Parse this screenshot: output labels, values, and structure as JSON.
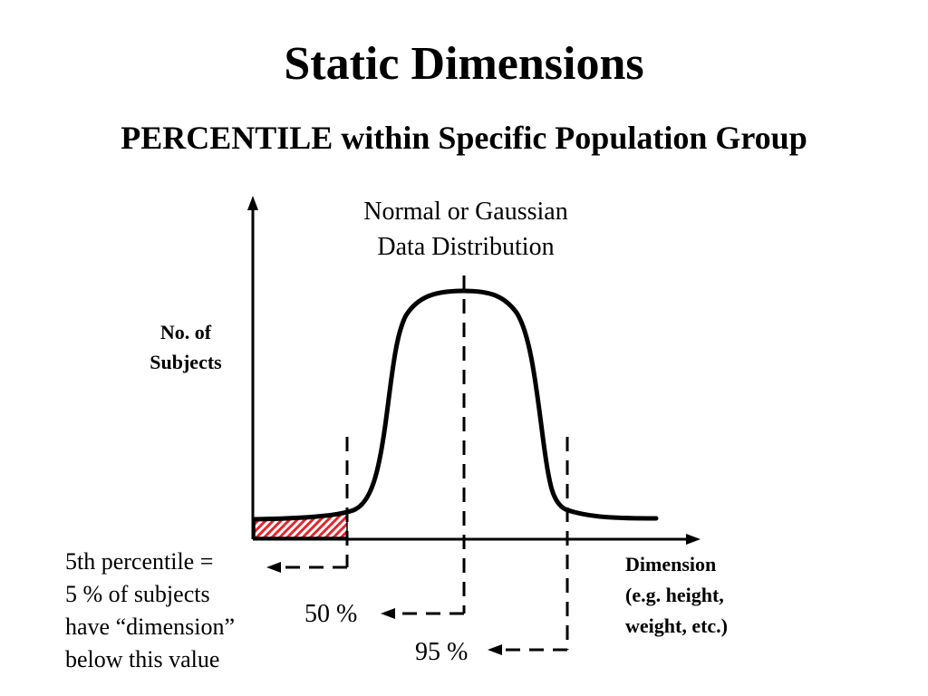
{
  "slide": {
    "title": "Static Dimensions",
    "subtitle": "PERCENTILE within Specific Population Group"
  },
  "diagram": {
    "caption_line1": "Normal or Gaussian",
    "caption_line2": "Data Distribution",
    "y_label_line1": "No. of",
    "y_label_line2": "Subjects",
    "x_label_line1": "Dimension",
    "x_label_line2": "(e.g. height,",
    "x_label_line3": "weight, etc.)",
    "marker_50": "50 %",
    "marker_95": "95 %",
    "note_line1": "5th percentile =",
    "note_line2": "5 % of subjects",
    "note_line3": "have “dimension”",
    "note_line4": "below this value",
    "shade_color": "#e8242a",
    "line_color": "#000000"
  }
}
